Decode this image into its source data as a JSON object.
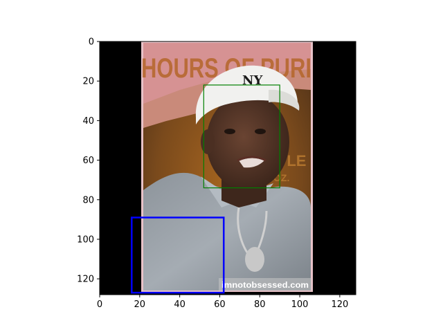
{
  "chart_data": {
    "type": "image",
    "xlim": [
      0,
      128
    ],
    "ylim": [
      128,
      0
    ],
    "x_ticks": [
      0,
      20,
      40,
      60,
      80,
      100,
      120
    ],
    "y_ticks": [
      0,
      20,
      40,
      60,
      80,
      100,
      120
    ],
    "grid": false,
    "photo_extent_x": [
      21,
      107
    ],
    "photo_extent_y": [
      0,
      126
    ],
    "boxes": [
      {
        "label": "green-box",
        "color": "#008000",
        "x0": 52,
        "y0": 22,
        "x1": 90,
        "y1": 74
      },
      {
        "label": "blue-box",
        "color": "#0000ff",
        "x0": 16,
        "y0": 89,
        "x1": 62,
        "y1": 127
      }
    ],
    "photo_text": {
      "banner": "HOURS OF PURI",
      "side": "PPLE",
      "side2": "OZ.",
      "cap_logo": "NY",
      "watermark": "imnotobsessed.com"
    }
  }
}
